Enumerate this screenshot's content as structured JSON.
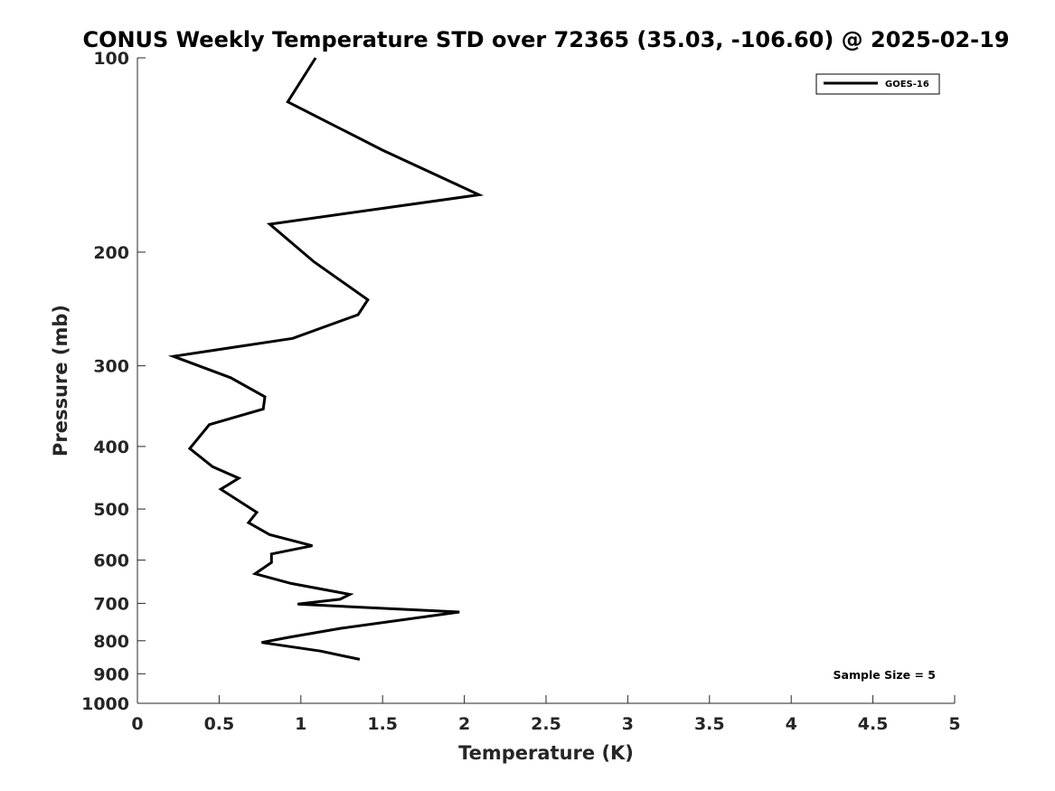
{
  "chart_data": {
    "type": "line",
    "title": "CONUS Weekly Temperature STD over 72365 (35.03, -106.60) @ 2025-02-19",
    "xlabel": "Temperature (K)",
    "ylabel": "Pressure (mb)",
    "xlim": [
      0,
      5
    ],
    "ylim": [
      1000,
      100
    ],
    "y_scale": "log",
    "y_reversed": true,
    "x_ticks": [
      "0",
      "0.5",
      "1",
      "1.5",
      "2",
      "2.5",
      "3",
      "3.5",
      "4",
      "4.5",
      "5"
    ],
    "y_ticks": [
      "100",
      "200",
      "300",
      "400",
      "500",
      "600",
      "700",
      "800",
      "900",
      "1000"
    ],
    "grid": false,
    "legend_position": "top-right",
    "series": [
      {
        "name": "GOES-16",
        "color": "#000000",
        "points": [
          {
            "pressure": 100,
            "temperature": 1.09
          },
          {
            "pressure": 117,
            "temperature": 0.92
          },
          {
            "pressure": 139,
            "temperature": 1.5
          },
          {
            "pressure": 163,
            "temperature": 2.09
          },
          {
            "pressure": 181,
            "temperature": 0.81
          },
          {
            "pressure": 207,
            "temperature": 1.08
          },
          {
            "pressure": 237,
            "temperature": 1.41
          },
          {
            "pressure": 250,
            "temperature": 1.35
          },
          {
            "pressure": 272,
            "temperature": 0.95
          },
          {
            "pressure": 290,
            "temperature": 0.22
          },
          {
            "pressure": 313,
            "temperature": 0.57
          },
          {
            "pressure": 335,
            "temperature": 0.78
          },
          {
            "pressure": 350,
            "temperature": 0.77
          },
          {
            "pressure": 370,
            "temperature": 0.44
          },
          {
            "pressure": 403,
            "temperature": 0.32
          },
          {
            "pressure": 430,
            "temperature": 0.46
          },
          {
            "pressure": 448,
            "temperature": 0.62
          },
          {
            "pressure": 466,
            "temperature": 0.51
          },
          {
            "pressure": 506,
            "temperature": 0.73
          },
          {
            "pressure": 525,
            "temperature": 0.68
          },
          {
            "pressure": 548,
            "temperature": 0.81
          },
          {
            "pressure": 570,
            "temperature": 1.07
          },
          {
            "pressure": 587,
            "temperature": 0.82
          },
          {
            "pressure": 605,
            "temperature": 0.82
          },
          {
            "pressure": 630,
            "temperature": 0.72
          },
          {
            "pressure": 652,
            "temperature": 0.94
          },
          {
            "pressure": 678,
            "temperature": 1.3
          },
          {
            "pressure": 690,
            "temperature": 1.24
          },
          {
            "pressure": 702,
            "temperature": 0.98
          },
          {
            "pressure": 722,
            "temperature": 1.97
          },
          {
            "pressure": 765,
            "temperature": 1.25
          },
          {
            "pressure": 790,
            "temperature": 0.93
          },
          {
            "pressure": 805,
            "temperature": 0.76
          },
          {
            "pressure": 830,
            "temperature": 1.12
          },
          {
            "pressure": 855,
            "temperature": 1.36
          }
        ]
      }
    ],
    "annotations": [
      "Sample Size = 5"
    ]
  }
}
